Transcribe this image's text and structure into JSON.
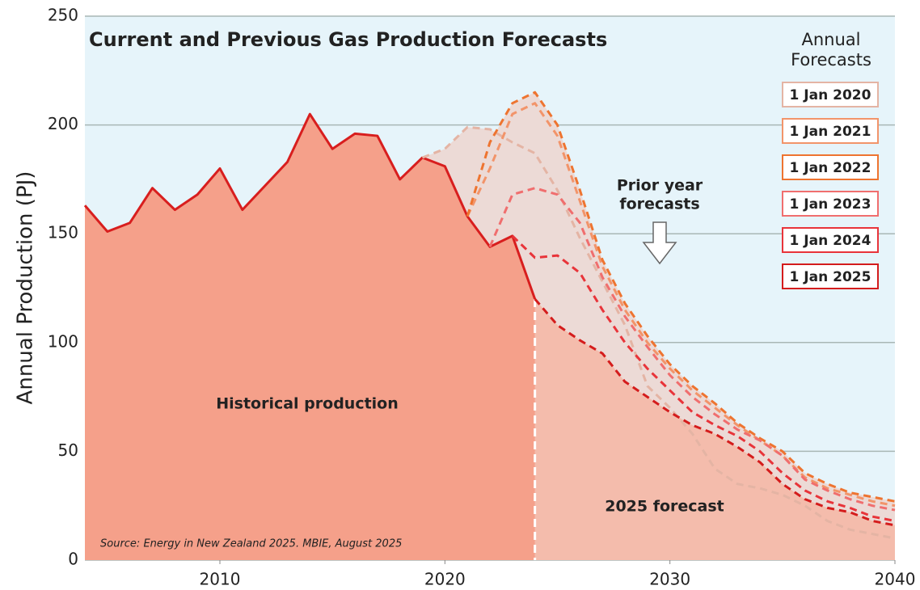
{
  "chart_data": {
    "type": "line",
    "title": "Current and Previous Gas Production Forecasts",
    "y_label": "Annual Production (PJ)",
    "source": "Source: Energy in New Zealand 2025. MBIE, August 2025",
    "xlim": [
      2004,
      2040
    ],
    "xticks": [
      2010,
      2020,
      2030,
      2040
    ],
    "ylim": [
      0,
      250
    ],
    "yticks": [
      0,
      50,
      100,
      150,
      200,
      250
    ],
    "grid": true,
    "legend_title": [
      "Annual",
      "Forecasts"
    ],
    "legend_position": "right",
    "historical": {
      "label": "Historical production",
      "color": "#d81e1e",
      "fill": "#f5a08a",
      "x": [
        2004,
        2005,
        2006,
        2007,
        2008,
        2009,
        2010,
        2011,
        2012,
        2013,
        2014,
        2015,
        2016,
        2017,
        2018,
        2019,
        2020,
        2021,
        2022,
        2023,
        2024
      ],
      "values": [
        163,
        151,
        155,
        171,
        161,
        168,
        180,
        161,
        172,
        183,
        205,
        189,
        196,
        195,
        175,
        185,
        181,
        158,
        144,
        149,
        120
      ]
    },
    "annotations": {
      "forecast": "2025 forecast",
      "prior": [
        "Prior year",
        "forecasts"
      ]
    },
    "series": [
      {
        "name": "1 Jan 2020",
        "color": "#e4b4a4",
        "x": [
          2019,
          2020,
          2021,
          2022,
          2023,
          2024,
          2025,
          2026,
          2027,
          2028,
          2029,
          2030,
          2031,
          2032,
          2033,
          2034,
          2035,
          2036,
          2037,
          2038,
          2039,
          2040
        ],
        "values": [
          185,
          189,
          199,
          198,
          192,
          187,
          170,
          148,
          128,
          108,
          80,
          70,
          58,
          42,
          35,
          33,
          30,
          25,
          18,
          14,
          12,
          10
        ]
      },
      {
        "name": "1 Jan 2021",
        "color": "#f2946a",
        "x": [
          2021,
          2022,
          2023,
          2024,
          2025,
          2026,
          2027,
          2028,
          2029,
          2030,
          2031,
          2032,
          2033,
          2034,
          2035,
          2036,
          2037,
          2038,
          2039,
          2040
        ],
        "values": [
          158,
          180,
          205,
          210,
          195,
          165,
          135,
          115,
          100,
          88,
          78,
          70,
          62,
          55,
          48,
          38,
          33,
          30,
          27,
          25
        ]
      },
      {
        "name": "1 Jan 2022",
        "color": "#ee7430",
        "x": [
          2021,
          2022,
          2023,
          2024,
          2025,
          2026,
          2027,
          2028,
          2029,
          2030,
          2031,
          2032,
          2033,
          2034,
          2035,
          2036,
          2037,
          2038,
          2039,
          2040
        ],
        "values": [
          158,
          192,
          210,
          215,
          200,
          170,
          138,
          118,
          103,
          90,
          80,
          72,
          63,
          56,
          50,
          40,
          35,
          31,
          29,
          27
        ]
      },
      {
        "name": "1 Jan 2023",
        "color": "#f06e6e",
        "x": [
          2022,
          2023,
          2024,
          2025,
          2026,
          2027,
          2028,
          2029,
          2030,
          2031,
          2032,
          2033,
          2034,
          2035,
          2036,
          2037,
          2038,
          2039,
          2040
        ],
        "values": [
          144,
          168,
          171,
          168,
          155,
          130,
          112,
          98,
          85,
          75,
          67,
          60,
          55,
          48,
          37,
          32,
          28,
          25,
          23
        ]
      },
      {
        "name": "1 Jan 2024",
        "color": "#e8343a",
        "x": [
          2023,
          2024,
          2025,
          2026,
          2027,
          2028,
          2029,
          2030,
          2031,
          2032,
          2033,
          2034,
          2035,
          2036,
          2037,
          2038,
          2039,
          2040
        ],
        "values": [
          149,
          139,
          140,
          132,
          115,
          100,
          88,
          78,
          68,
          62,
          57,
          50,
          40,
          32,
          27,
          24,
          20,
          18
        ]
      },
      {
        "name": "1 Jan 2025",
        "color": "#d41c1c",
        "x": [
          2024,
          2025,
          2026,
          2027,
          2028,
          2029,
          2030,
          2031,
          2032,
          2033,
          2034,
          2035,
          2036,
          2037,
          2038,
          2039,
          2040
        ],
        "values": [
          120,
          108,
          101,
          95,
          82,
          75,
          68,
          62,
          58,
          52,
          45,
          35,
          28,
          24,
          22,
          18,
          16
        ]
      }
    ]
  }
}
